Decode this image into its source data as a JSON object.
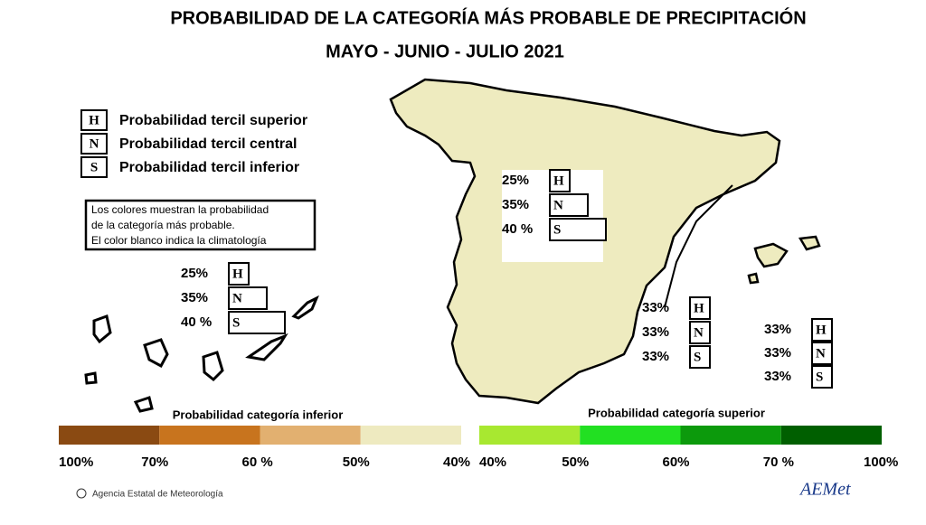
{
  "header": {
    "title": "PROBABILIDAD DE LA  CATEGORÍA MÁS PROBABLE DE PRECIPITACIÓN",
    "subtitle": "MAYO - JUNIO - JULIO 2021"
  },
  "legend": [
    {
      "letter": "H",
      "text": "Probabilidad  tercil superior"
    },
    {
      "letter": "N",
      "text": "Probabilidad  tercil central"
    },
    {
      "letter": "S",
      "text": "Probabilidad  tercil inferior"
    }
  ],
  "note": [
    "Los colores muestran la probabilidad",
    "de la categoría más probable.",
    "El color blanco indica la climatología"
  ],
  "regions": [
    {
      "rows": [
        {
          "pct": "25%",
          "cat": "H"
        },
        {
          "pct": "35%",
          "cat": "N"
        },
        {
          "pct": "40 %",
          "cat": "S"
        }
      ]
    },
    {
      "rows": [
        {
          "pct": "25%",
          "cat": "H"
        },
        {
          "pct": "35%",
          "cat": "N"
        },
        {
          "pct": "40 %",
          "cat": "S"
        }
      ]
    },
    {
      "rows": [
        {
          "pct": "33%",
          "cat": "H"
        },
        {
          "pct": "33%",
          "cat": "N"
        },
        {
          "pct": "33%",
          "cat": "S"
        }
      ]
    },
    {
      "rows": [
        {
          "pct": "33%",
          "cat": "H"
        },
        {
          "pct": "33%",
          "cat": "N"
        },
        {
          "pct": "33%",
          "cat": "S"
        }
      ]
    }
  ],
  "scales": [
    {
      "title": "Probabilidad categoría inferior",
      "labels": [
        "100%",
        "70%",
        "60 %",
        "50%",
        "40%"
      ],
      "colors": [
        "#8a4a12",
        "#c8741e",
        "#e2b070",
        "#eeeac0"
      ]
    },
    {
      "title": "Probabilidad categoría superior",
      "labels": [
        "40%",
        "50%",
        "60%",
        "70 %",
        "100%"
      ],
      "colors": [
        "#a8e830",
        "#22e022",
        "#0c9a0c",
        "#005f00"
      ]
    }
  ],
  "footer": {
    "credit": "Agencia Estatal de Meteorología",
    "logo": "AEMet"
  }
}
